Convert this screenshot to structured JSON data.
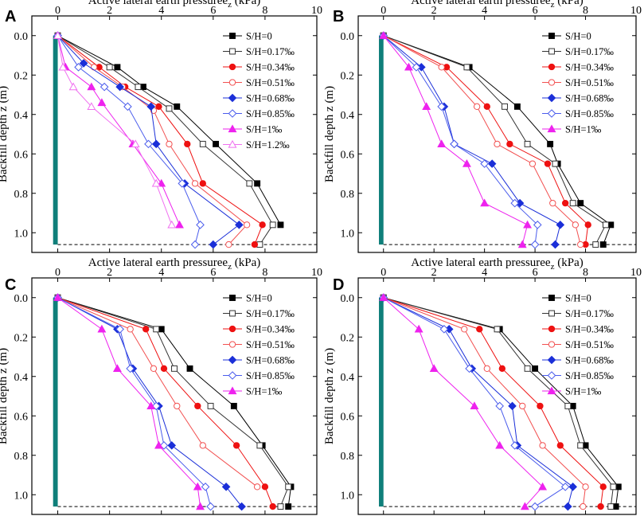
{
  "colors": {
    "wall": "#0f7f7a",
    "series": [
      "#000000",
      "#333333",
      "#ee1111",
      "#f25050",
      "#1b2fd8",
      "#4a5cec",
      "#ee22ee",
      "#f070f0"
    ]
  },
  "chart_data": [
    {
      "panel": "A",
      "type": "line",
      "xlabel": "Active lateral earth pressureez (kPa)",
      "ylabel": "Backfill depth z (m)",
      "xlim": [
        -1,
        10
      ],
      "ylim": [
        1.1,
        -0.1
      ],
      "xticks": [
        "0",
        "2",
        "4",
        "6",
        "8",
        "10"
      ],
      "yticks": [
        "0.0",
        "0.2",
        "0.4",
        "0.6",
        "0.8",
        "1.0"
      ],
      "base_depth": 1.06,
      "series": [
        {
          "name": "S/H=0",
          "marker": "square-filled",
          "x": [
            0,
            2.3,
            3.3,
            4.6,
            6.1,
            7.7,
            8.6
          ],
          "y": [
            0,
            0.16,
            0.26,
            0.36,
            0.55,
            0.75,
            0.96
          ]
        },
        {
          "name": "S/H=0.17‰",
          "marker": "square-open",
          "x": [
            0,
            2.0,
            3.1,
            4.3,
            5.6,
            7.4,
            8.3,
            7.8
          ],
          "y": [
            0,
            0.16,
            0.26,
            0.37,
            0.55,
            0.75,
            0.96,
            1.06
          ]
        },
        {
          "name": "S/H=0.34‰",
          "marker": "circle-filled",
          "x": [
            0,
            1.6,
            2.6,
            3.9,
            5.0,
            5.6,
            7.9,
            7.6
          ],
          "y": [
            0,
            0.16,
            0.26,
            0.36,
            0.55,
            0.75,
            0.96,
            1.06
          ]
        },
        {
          "name": "S/H=0.51‰",
          "marker": "circle-open",
          "x": [
            0,
            1.4,
            2.5,
            3.7,
            4.3,
            5.3,
            7.3,
            6.6
          ],
          "y": [
            0,
            0.16,
            0.26,
            0.38,
            0.55,
            0.75,
            0.96,
            1.06
          ]
        },
        {
          "name": "S/H=0.68‰",
          "marker": "diamond-filled",
          "x": [
            0,
            1.0,
            2.4,
            3.6,
            3.8,
            4.9,
            7.0,
            6.0
          ],
          "y": [
            0,
            0.14,
            0.26,
            0.36,
            0.55,
            0.75,
            0.96,
            1.06
          ]
        },
        {
          "name": "S/H=0.85‰",
          "marker": "diamond-open",
          "x": [
            0,
            0.8,
            1.8,
            2.7,
            3.5,
            4.8,
            5.5,
            5.3
          ],
          "y": [
            0,
            0.16,
            0.26,
            0.36,
            0.55,
            0.75,
            0.96,
            1.06
          ]
        },
        {
          "name": "S/H=1‰",
          "marker": "triangle-filled",
          "x": [
            0,
            0.3,
            1.3,
            1.7,
            2.9,
            4.0,
            4.7
          ],
          "y": [
            0,
            0.16,
            0.26,
            0.34,
            0.55,
            0.75,
            0.96
          ]
        },
        {
          "name": "S/H=1.2‰",
          "marker": "triangle-open",
          "x": [
            0,
            0.2,
            0.6,
            1.3,
            3.0,
            3.8,
            4.4
          ],
          "y": [
            0,
            0.16,
            0.26,
            0.36,
            0.55,
            0.75,
            0.96
          ]
        }
      ]
    },
    {
      "panel": "B",
      "type": "line",
      "xlabel": "Active lateral earth pressureez (kPa)",
      "ylabel": "Backfill depth z (m)",
      "xlim": [
        -1,
        10
      ],
      "ylim": [
        1.1,
        -0.1
      ],
      "xticks": [
        "0",
        "2",
        "4",
        "6",
        "8",
        "10"
      ],
      "yticks": [
        "0.0",
        "0.2",
        "0.4",
        "0.6",
        "0.8",
        "1.0"
      ],
      "base_depth": 1.06,
      "series": [
        {
          "name": "S/H=0",
          "marker": "square-filled",
          "x": [
            0,
            3.4,
            5.3,
            6.6,
            6.9,
            7.8,
            9.0,
            8.7
          ],
          "y": [
            0,
            0.16,
            0.36,
            0.55,
            0.65,
            0.85,
            0.96,
            1.06
          ]
        },
        {
          "name": "S/H=0.17‰",
          "marker": "square-open",
          "x": [
            0,
            3.3,
            4.8,
            5.7,
            6.8,
            7.5,
            8.8,
            8.4
          ],
          "y": [
            0,
            0.16,
            0.36,
            0.55,
            0.65,
            0.85,
            0.96,
            1.06
          ]
        },
        {
          "name": "S/H=0.34‰",
          "marker": "circle-filled",
          "x": [
            0,
            2.5,
            4.1,
            5.0,
            6.5,
            7.2,
            8.1,
            8.0
          ],
          "y": [
            0,
            0.16,
            0.36,
            0.55,
            0.65,
            0.85,
            0.96,
            1.06
          ]
        },
        {
          "name": "S/H=0.51‰",
          "marker": "circle-open",
          "x": [
            0,
            2.3,
            3.7,
            4.5,
            5.9,
            6.7,
            7.6,
            7.8
          ],
          "y": [
            0,
            0.16,
            0.36,
            0.55,
            0.65,
            0.85,
            0.96,
            1.06
          ]
        },
        {
          "name": "S/H=0.68‰",
          "marker": "diamond-filled",
          "x": [
            0,
            1.5,
            2.4,
            2.8,
            4.3,
            5.4,
            7.0,
            6.8
          ],
          "y": [
            0,
            0.16,
            0.36,
            0.55,
            0.65,
            0.85,
            0.96,
            1.06
          ]
        },
        {
          "name": "S/H=0.85‰",
          "marker": "diamond-open",
          "x": [
            0,
            1.3,
            2.3,
            2.8,
            4.0,
            5.2,
            6.1,
            6.0
          ],
          "y": [
            0,
            0.16,
            0.36,
            0.55,
            0.65,
            0.85,
            0.96,
            1.06
          ]
        },
        {
          "name": "S/H=1‰",
          "marker": "triangle-filled",
          "x": [
            0,
            1.0,
            1.7,
            2.3,
            3.3,
            4.0,
            5.7,
            5.5
          ],
          "y": [
            0,
            0.16,
            0.36,
            0.55,
            0.65,
            0.85,
            0.96,
            1.06
          ]
        }
      ]
    },
    {
      "panel": "C",
      "type": "line",
      "xlabel": "Active lateral earth pressureez (kPa)",
      "ylabel": "Backfill depth z (m)",
      "xlim": [
        -1,
        10
      ],
      "ylim": [
        1.1,
        -0.1
      ],
      "xticks": [
        "0",
        "2",
        "4",
        "6",
        "8",
        "10"
      ],
      "yticks": [
        "0.0",
        "0.2",
        "0.4",
        "0.6",
        "0.8",
        "1.0"
      ],
      "base_depth": 1.06,
      "series": [
        {
          "name": "S/H=0",
          "marker": "square-filled",
          "x": [
            0,
            4.0,
            5.1,
            6.8,
            7.9,
            9.0,
            8.9
          ],
          "y": [
            0,
            0.16,
            0.36,
            0.55,
            0.75,
            0.96,
            1.06
          ]
        },
        {
          "name": "S/H=0.17‰",
          "marker": "square-open",
          "x": [
            0,
            3.8,
            4.5,
            5.9,
            7.8,
            8.9,
            8.6
          ],
          "y": [
            0,
            0.16,
            0.36,
            0.55,
            0.75,
            0.96,
            1.06
          ]
        },
        {
          "name": "S/H=0.34‰",
          "marker": "circle-filled",
          "x": [
            0,
            3.4,
            4.1,
            5.4,
            6.9,
            8.0,
            8.3
          ],
          "y": [
            0,
            0.16,
            0.36,
            0.55,
            0.75,
            0.96,
            1.06
          ]
        },
        {
          "name": "S/H=0.51‰",
          "marker": "circle-open",
          "x": [
            0,
            2.8,
            3.7,
            4.6,
            5.6,
            7.7
          ],
          "y": [
            0,
            0.16,
            0.36,
            0.55,
            0.75,
            0.96
          ]
        },
        {
          "name": "S/H=0.68‰",
          "marker": "diamond-filled",
          "x": [
            0,
            2.3,
            2.9,
            3.9,
            4.4,
            6.5,
            7.1
          ],
          "y": [
            0,
            0.16,
            0.36,
            0.55,
            0.75,
            0.96,
            1.06
          ]
        },
        {
          "name": "S/H=0.85‰",
          "marker": "diamond-open",
          "x": [
            0,
            2.4,
            2.8,
            3.8,
            4.1,
            5.7,
            5.9
          ],
          "y": [
            0,
            0.16,
            0.36,
            0.55,
            0.75,
            0.96,
            1.06
          ]
        },
        {
          "name": "S/H=1‰",
          "marker": "triangle-filled",
          "x": [
            0,
            1.7,
            2.3,
            3.6,
            3.9,
            5.4,
            5.5
          ],
          "y": [
            0,
            0.16,
            0.36,
            0.55,
            0.75,
            0.96,
            1.06
          ]
        }
      ]
    },
    {
      "panel": "D",
      "type": "line",
      "xlabel": "Active lateral earth pressureez (kPa)",
      "ylabel": "Backfill depth z (m)",
      "xlim": [
        -1,
        10
      ],
      "ylim": [
        1.1,
        -0.1
      ],
      "xticks": [
        "0",
        "2",
        "4",
        "6",
        "8",
        "10"
      ],
      "yticks": [
        "0.0",
        "0.2",
        "0.4",
        "0.6",
        "0.8",
        "1.0"
      ],
      "base_depth": 1.06,
      "series": [
        {
          "name": "S/H=0",
          "marker": "square-filled",
          "x": [
            0,
            4.6,
            6.0,
            7.5,
            8.0,
            9.3,
            9.2
          ],
          "y": [
            0,
            0.16,
            0.36,
            0.55,
            0.75,
            0.96,
            1.06
          ]
        },
        {
          "name": "S/H=0.17‰",
          "marker": "square-open",
          "x": [
            0,
            4.5,
            5.7,
            7.3,
            7.8,
            9.1,
            9.0
          ],
          "y": [
            0,
            0.16,
            0.36,
            0.55,
            0.75,
            0.96,
            1.06
          ]
        },
        {
          "name": "S/H=0.34‰",
          "marker": "circle-filled",
          "x": [
            0,
            3.8,
            4.7,
            6.2,
            7.0,
            8.7,
            8.6
          ],
          "y": [
            0,
            0.16,
            0.36,
            0.55,
            0.75,
            0.96,
            1.06
          ]
        },
        {
          "name": "S/H=0.51‰",
          "marker": "circle-open",
          "x": [
            0,
            3.2,
            4.1,
            5.5,
            6.3,
            8.0,
            7.9
          ],
          "y": [
            0,
            0.16,
            0.36,
            0.55,
            0.75,
            0.96,
            1.06
          ]
        },
        {
          "name": "S/H=0.68‰",
          "marker": "diamond-filled",
          "x": [
            0,
            2.6,
            3.5,
            5.1,
            5.3,
            7.5,
            7.3
          ],
          "y": [
            0,
            0.16,
            0.36,
            0.55,
            0.75,
            0.96,
            1.06
          ]
        },
        {
          "name": "S/H=0.85‰",
          "marker": "diamond-open",
          "x": [
            0,
            2.4,
            3.4,
            4.6,
            5.2,
            7.2,
            6.0
          ],
          "y": [
            0,
            0.16,
            0.36,
            0.55,
            0.75,
            0.96,
            1.06
          ]
        },
        {
          "name": "S/H=1‰",
          "marker": "triangle-filled",
          "x": [
            0,
            1.4,
            2.0,
            3.6,
            4.6,
            6.3,
            5.6
          ],
          "y": [
            0,
            0.16,
            0.36,
            0.55,
            0.75,
            0.96,
            1.06
          ]
        }
      ]
    }
  ]
}
